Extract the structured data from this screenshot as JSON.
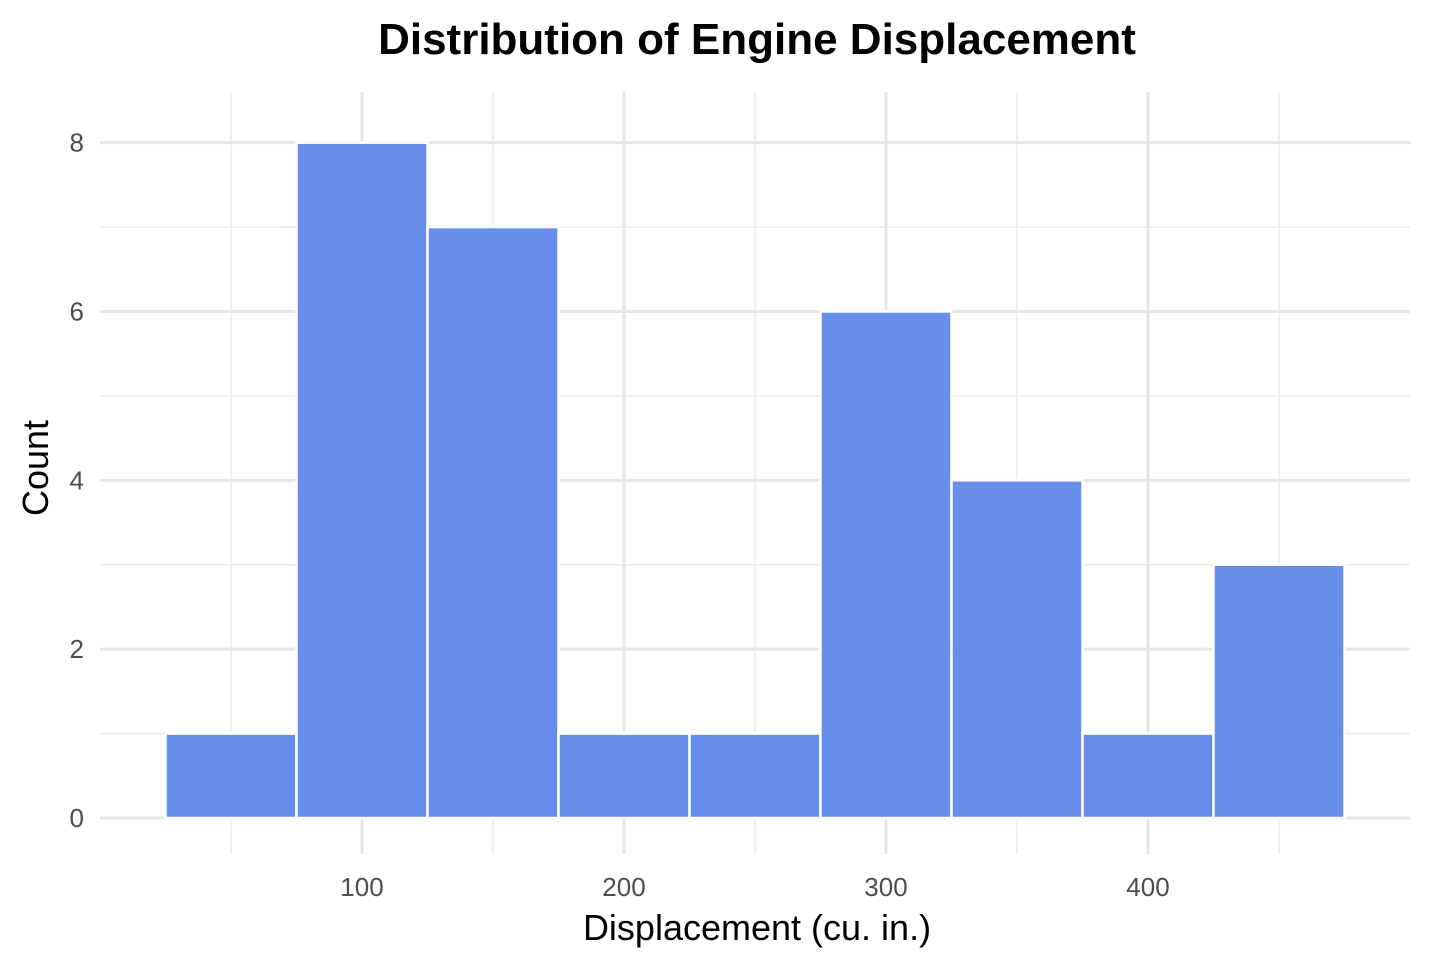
{
  "chart_data": {
    "type": "bar",
    "title": "Distribution of Engine Displacement",
    "xlabel": "Displacement (cu. in.)",
    "ylabel": "Count",
    "bin_width": 50,
    "bins": [
      {
        "x0": 25,
        "x1": 75,
        "count": 1
      },
      {
        "x0": 75,
        "x1": 125,
        "count": 8
      },
      {
        "x0": 125,
        "x1": 175,
        "count": 7
      },
      {
        "x0": 175,
        "x1": 225,
        "count": 1
      },
      {
        "x0": 225,
        "x1": 275,
        "count": 1
      },
      {
        "x0": 275,
        "x1": 325,
        "count": 6
      },
      {
        "x0": 325,
        "x1": 375,
        "count": 4
      },
      {
        "x0": 375,
        "x1": 425,
        "count": 1
      },
      {
        "x0": 425,
        "x1": 475,
        "count": 3
      }
    ],
    "xlim": [
      0,
      500
    ],
    "ylim": [
      0,
      8.6
    ],
    "x_ticks": [
      100,
      200,
      300,
      400
    ],
    "x_minor_ticks": [
      50,
      150,
      250,
      350,
      450
    ],
    "y_ticks": [
      0,
      2,
      4,
      6,
      8
    ],
    "y_minor_ticks": [
      1,
      3,
      5,
      7
    ],
    "grid": true,
    "legend": "none",
    "colors": {
      "bar": "#5b85e8",
      "bar_edge": "#ffffff",
      "grid": "#e6e6e6",
      "tick_text": "#4d4d4d"
    }
  }
}
